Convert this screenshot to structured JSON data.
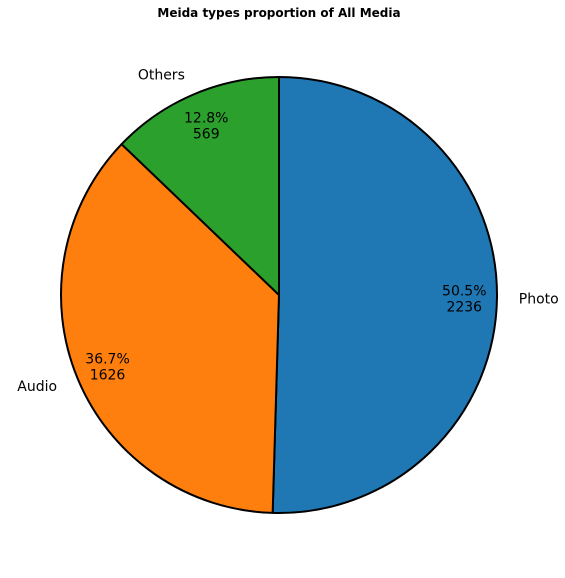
{
  "chart_data": {
    "type": "pie",
    "title": "Meida types proportion of All Media",
    "categories": [
      "Photo",
      "Audio",
      "Others"
    ],
    "values": [
      2236,
      1626,
      569
    ],
    "percent_labels": [
      "50.5%",
      "36.7%",
      "12.8%"
    ],
    "value_labels": [
      "2236",
      "1626",
      "569"
    ],
    "colors": [
      "#1f77b4",
      "#ff7f0e",
      "#2ca02c"
    ],
    "start_angle_deg": 90,
    "direction": "clockwise",
    "edge_color": "#000000",
    "legend": "none"
  }
}
